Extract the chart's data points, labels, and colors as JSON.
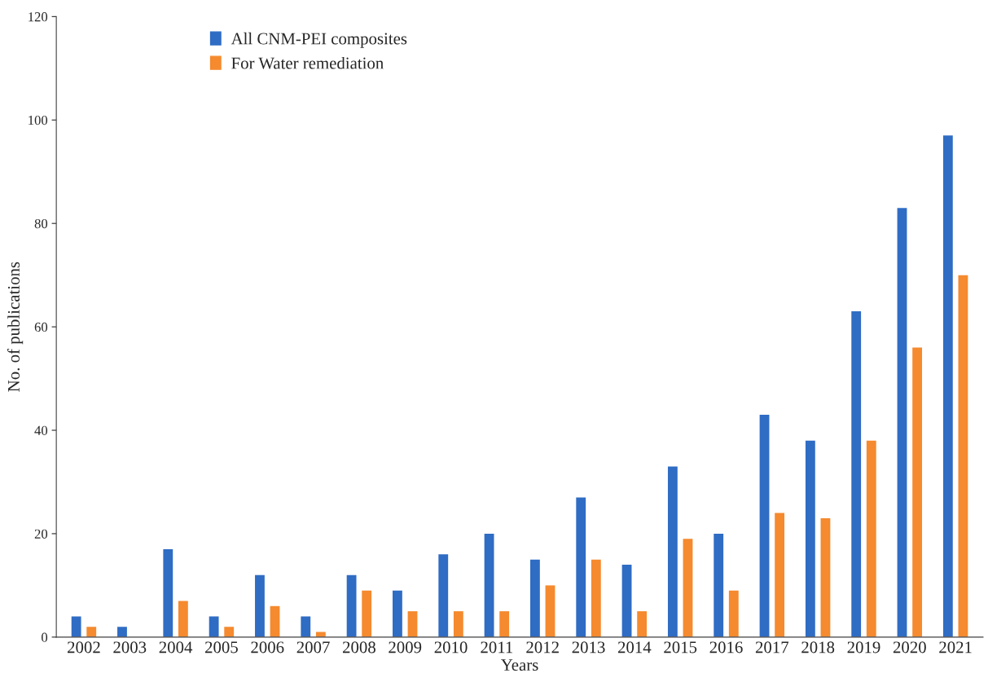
{
  "chart_data": {
    "type": "bar",
    "xlabel": "Years",
    "ylabel": "No. of publications",
    "categories": [
      "2002",
      "2003",
      "2004",
      "2005",
      "2006",
      "2007",
      "2008",
      "2009",
      "2010",
      "2011",
      "2012",
      "2013",
      "2014",
      "2015",
      "2016",
      "2017",
      "2018",
      "2019",
      "2020",
      "2021"
    ],
    "series": [
      {
        "name": "All CNM-PEI composites",
        "color": "#2f6cc4",
        "values": [
          4,
          2,
          17,
          4,
          12,
          4,
          12,
          9,
          16,
          20,
          15,
          27,
          14,
          33,
          20,
          43,
          38,
          63,
          83,
          97
        ]
      },
      {
        "name": "For Water remediation",
        "color": "#f58a2e",
        "values": [
          2,
          0,
          7,
          2,
          6,
          1,
          9,
          5,
          5,
          5,
          10,
          15,
          5,
          19,
          9,
          24,
          23,
          38,
          56,
          70
        ]
      }
    ],
    "ylim": [
      0,
      120
    ],
    "yticks": [
      0,
      20,
      40,
      60,
      80,
      100,
      120
    ],
    "grid": false,
    "legend": "top left"
  }
}
